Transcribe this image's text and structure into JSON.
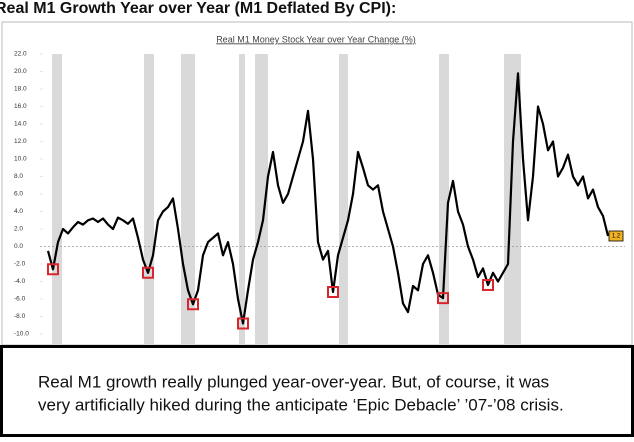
{
  "heading": "Real M1 Growth Year over Year (M1 Deflated By CPI):",
  "chart_data": {
    "type": "line",
    "title": "Real M1 Money Stock Year over Year Change (%)",
    "color": "#000000",
    "highlight_color": "#d9262c",
    "values": [
      -0.5,
      -2.6,
      0.5,
      2.0,
      1.5,
      2.2,
      2.8,
      2.5,
      3.0,
      3.2,
      2.8,
      3.2,
      2.5,
      2.0,
      3.3,
      3.0,
      2.6,
      3.2,
      1.0,
      -1.5,
      -3.0,
      -1.0,
      3.0,
      4.0,
      4.5,
      5.5,
      2.0,
      -2.0,
      -5.0,
      -6.6,
      -5.0,
      -1.0,
      0.5,
      1.0,
      1.5,
      -1.0,
      0.5,
      -2.0,
      -6.0,
      -8.8,
      -5.0,
      -1.5,
      0.5,
      3.0,
      8.0,
      10.8,
      7.0,
      5.0,
      6.0,
      8.0,
      10.0,
      12.0,
      15.5,
      10.0,
      0.5,
      -1.5,
      -0.5,
      -5.2,
      -1.0,
      1.0,
      3.0,
      6.0,
      10.8,
      9.0,
      7.0,
      6.5,
      7.0,
      4.0,
      2.0,
      0.0,
      -3.0,
      -6.5,
      -7.5,
      -4.5,
      -5.0,
      -2.0,
      -1.0,
      -3.0,
      -5.5,
      -5.9,
      5.0,
      7.5,
      4.0,
      2.5,
      0.0,
      -1.5,
      -3.5,
      -2.5,
      -4.4,
      -3.0,
      -4.0,
      -3.0,
      -2.0,
      12.0,
      19.8,
      10.0,
      3.0,
      8.0,
      16.0,
      14.0,
      11.0,
      12.0,
      8.0,
      9.0,
      10.5,
      8.0,
      7.0,
      8.0,
      5.5,
      6.5,
      4.5,
      3.5,
      1.2
    ],
    "lows": [
      null,
      -2.6,
      null,
      null,
      null,
      null,
      null,
      null,
      null,
      null,
      null,
      null,
      null,
      null,
      null,
      null,
      null,
      null,
      null,
      null,
      -3.0,
      null,
      null,
      null,
      null,
      null,
      null,
      null,
      null,
      -6.6,
      null,
      null,
      null,
      null,
      null,
      null,
      null,
      null,
      null,
      -8.8,
      null,
      null,
      null,
      null,
      null,
      null,
      null,
      null,
      null,
      null,
      null,
      null,
      null,
      null,
      null,
      null,
      null,
      -5.2,
      null,
      null,
      null,
      null,
      null,
      null,
      null,
      null,
      null,
      null,
      null,
      null,
      null,
      null,
      null,
      null,
      null,
      null,
      null,
      null,
      null,
      -5.9,
      null,
      null,
      null,
      null,
      null,
      null,
      null,
      null,
      -4.4,
      null,
      null,
      null,
      null,
      null,
      null,
      null,
      null,
      null,
      null,
      null,
      null,
      null,
      null,
      null,
      null,
      null,
      null,
      null,
      null,
      null,
      null,
      null,
      null
    ],
    "end_label": "1.2",
    "ylim": [
      -10,
      22
    ],
    "yticks": [
      {
        "value": 22,
        "label": "22.0"
      },
      {
        "value": 20,
        "label": "20.0"
      },
      {
        "value": 18,
        "label": "18.0"
      },
      {
        "value": 16,
        "label": "16.0"
      },
      {
        "value": 14,
        "label": "14.0"
      },
      {
        "value": 12,
        "label": "12.0"
      },
      {
        "value": 10,
        "label": "10.0"
      },
      {
        "value": 8,
        "label": "8.0"
      },
      {
        "value": 6,
        "label": "6.0"
      },
      {
        "value": 4,
        "label": "4.0"
      },
      {
        "value": 2,
        "label": "2.0"
      },
      {
        "value": 0,
        "label": "0.0"
      },
      {
        "value": -2,
        "label": "-2.0"
      },
      {
        "value": -4,
        "label": "-4.0"
      },
      {
        "value": -6,
        "label": "-6.0"
      },
      {
        "value": -8,
        "label": "-8.0"
      },
      {
        "value": -10,
        "label": "-10.0"
      }
    ]
  },
  "caption": {
    "line1": "Real M1 growth really plunged year-over-year. But, of course, it was",
    "line2": "very artificially hiked during the anticipate ‘Epic Debacle’ ’07-’08 crisis."
  }
}
